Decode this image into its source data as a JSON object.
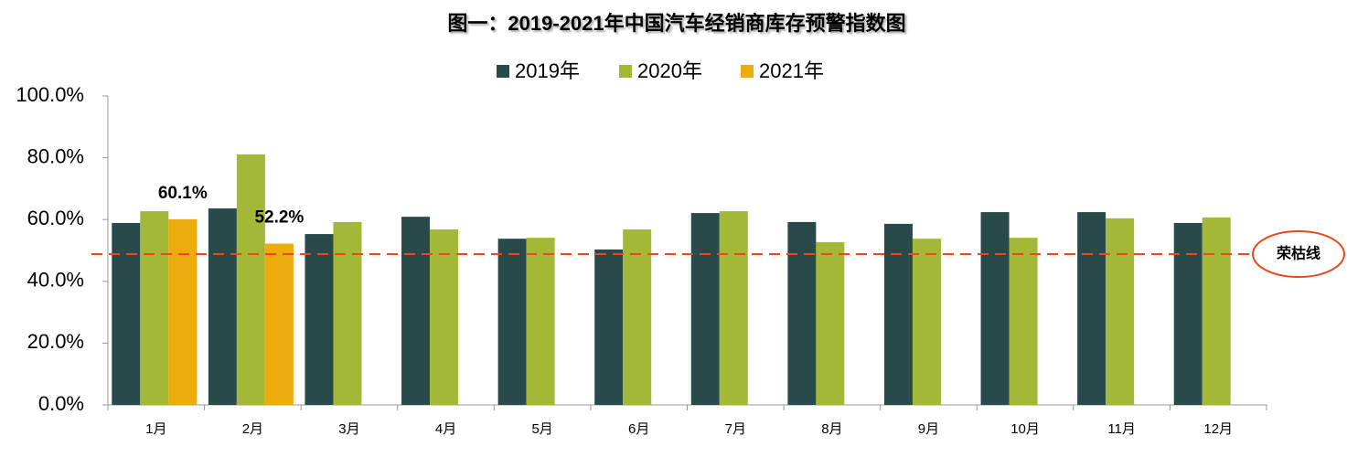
{
  "chart_data": {
    "type": "bar",
    "title": "图一：2019-2021年中国汽车经销商库存预警指数图",
    "categories": [
      "1月",
      "2月",
      "3月",
      "4月",
      "5月",
      "6月",
      "7月",
      "8月",
      "9月",
      "10月",
      "11月",
      "12月"
    ],
    "series": [
      {
        "name": "2019年",
        "color": "#294a4a",
        "values": [
          58.9,
          63.6,
          55.3,
          60.9,
          53.8,
          50.3,
          62.1,
          59.2,
          58.6,
          62.4,
          62.4,
          58.9
        ]
      },
      {
        "name": "2020年",
        "color": "#a3b836",
        "values": [
          62.7,
          81.1,
          59.2,
          56.8,
          54.1,
          56.8,
          62.7,
          52.7,
          53.8,
          54.1,
          60.4,
          60.7
        ]
      },
      {
        "name": "2021年",
        "color": "#ecac0e",
        "values": [
          60.1,
          52.2,
          null,
          null,
          null,
          null,
          null,
          null,
          null,
          null,
          null,
          null
        ],
        "value_labels": [
          "60.1%",
          "52.2%",
          null,
          null,
          null,
          null,
          null,
          null,
          null,
          null,
          null,
          null
        ]
      }
    ],
    "ylim": [
      0,
      100
    ],
    "yticks": [
      {
        "value": 0,
        "label": "0.0%"
      },
      {
        "value": 20,
        "label": "20.0%"
      },
      {
        "value": 40,
        "label": "40.0%"
      },
      {
        "value": 60,
        "label": "60.0%"
      },
      {
        "value": 80,
        "label": "80.0%"
      },
      {
        "value": 100,
        "label": "100.0%"
      }
    ],
    "reference_line": {
      "value": 48.8,
      "label": "荣枯线",
      "color": "#e8491d"
    },
    "legend": "top"
  }
}
